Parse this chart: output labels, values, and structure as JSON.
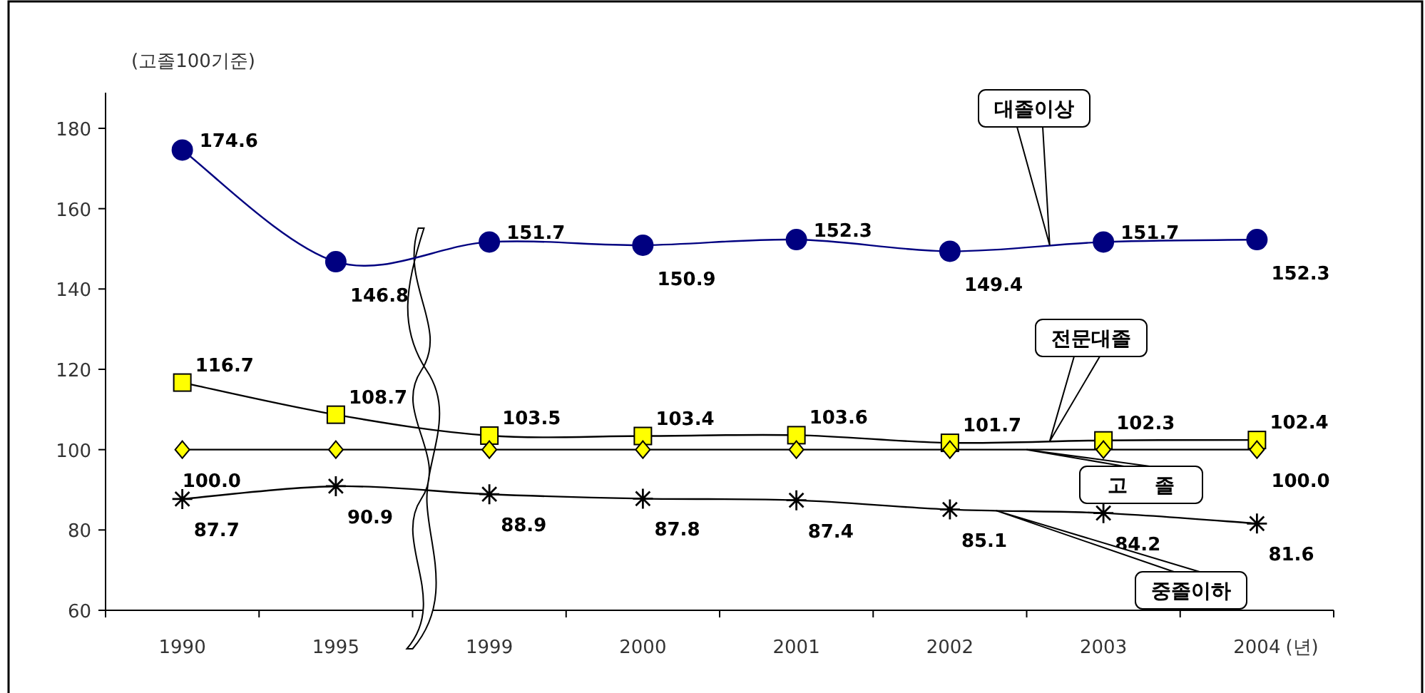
{
  "chart_data": {
    "type": "line",
    "ylabel": "(고졸100기준)",
    "xlabel": "(년)",
    "categories": [
      "1990",
      "1995",
      "1999",
      "2000",
      "2001",
      "2002",
      "2003",
      "2004"
    ],
    "ylim": [
      60,
      180
    ],
    "yticks": [
      60,
      80,
      100,
      120,
      140,
      160,
      180
    ],
    "legend": false,
    "grid": false,
    "series": [
      {
        "name": "대졸이상",
        "color": "#000080",
        "marker": "circle",
        "values": [
          174.6,
          146.8,
          151.7,
          150.9,
          152.3,
          149.4,
          151.7,
          152.3
        ],
        "value_labels": [
          "174.6",
          "146.8",
          "151.7",
          "150.9",
          "152.3",
          "149.4",
          "151.7",
          "152.3"
        ]
      },
      {
        "name": "전문대졸",
        "color": "#ffff00",
        "marker": "square",
        "values": [
          116.7,
          108.7,
          103.5,
          103.4,
          103.6,
          101.7,
          102.3,
          102.4
        ],
        "value_labels": [
          "116.7",
          "108.7",
          "103.5",
          "103.4",
          "103.6",
          "101.7",
          "102.3",
          "102.4"
        ]
      },
      {
        "name": "고    졸",
        "color": "#ffff00",
        "marker": "diamond",
        "values": [
          100.0,
          100.0,
          100.0,
          100.0,
          100.0,
          100.0,
          100.0,
          100.0
        ],
        "value_labels": [
          "100.0",
          null,
          null,
          null,
          null,
          null,
          null,
          "100.0"
        ]
      },
      {
        "name": "중졸이하",
        "color": "#000000",
        "marker": "cross",
        "values": [
          87.7,
          90.9,
          88.9,
          87.8,
          87.4,
          85.1,
          84.2,
          81.6
        ],
        "value_labels": [
          "87.7",
          "90.9",
          "88.9",
          "87.8",
          "87.4",
          "85.1",
          "84.2",
          "81.6"
        ]
      }
    ]
  }
}
